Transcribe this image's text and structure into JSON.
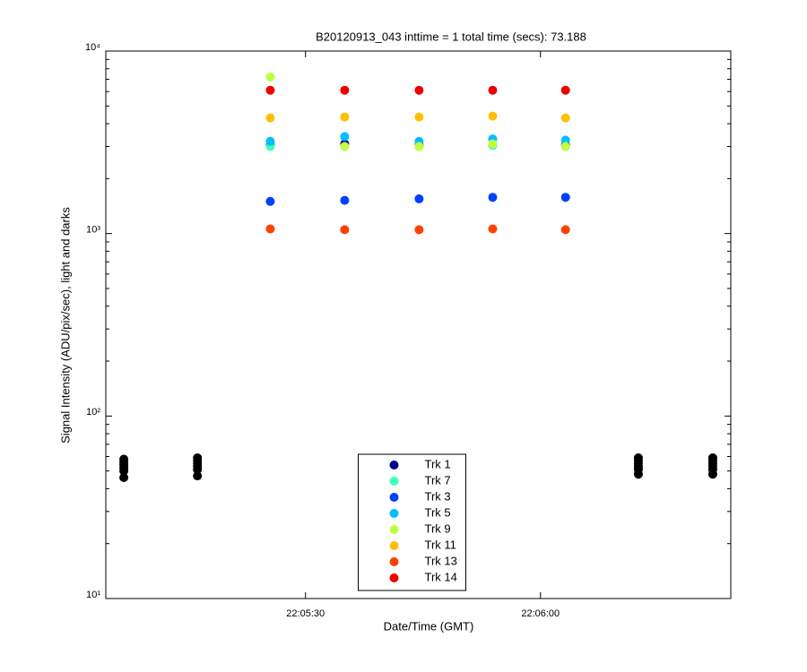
{
  "chart_data": {
    "type": "scatter",
    "title": "B20120913_043 inttime = 1 total time (secs): 73.188",
    "x_label": "Date/Time (GMT)",
    "y_label": "Signal Intensity (ADU/pix/sec), light and darks",
    "log_y": true,
    "xlim": [
      79504.5,
      79584.3
    ],
    "xticks": [
      {
        "value": 79530,
        "label": "22:05:30"
      },
      {
        "value": 79560,
        "label": "22:06:00"
      }
    ],
    "ylim": [
      10,
      10000
    ],
    "yticks": [
      {
        "value": 10,
        "label": "10¹"
      },
      {
        "value": 100,
        "label": "10²"
      },
      {
        "value": 1000,
        "label": "10³"
      },
      {
        "value": 10000,
        "label": "10⁴"
      }
    ],
    "legend_position": "south",
    "series": [
      {
        "color": "#000000",
        "x": [
          79506.8,
          79506.8,
          79506.8,
          79506.8,
          79506.8,
          79506.8,
          79516.2,
          79516.2,
          79516.2,
          79516.2,
          79516.2,
          79516.2,
          79572.5,
          79572.5,
          79572.5,
          79572.5,
          79572.5,
          79572.5,
          79582.0,
          79582.0,
          79582.0,
          79582.0,
          79582.0,
          79582.0
        ],
        "values": [
          46,
          50,
          52,
          54,
          56,
          58,
          47,
          51,
          53,
          55,
          57,
          59,
          48,
          51,
          53,
          55,
          57,
          59,
          48,
          51,
          53,
          55,
          57,
          59
        ]
      },
      {
        "name": "Trk 1",
        "color": "#00008f",
        "x": [
          79525.5,
          79535.0,
          79544.5,
          79553.9,
          79563.2
        ],
        "values": [
          3050,
          3100,
          3050,
          3050,
          3050
        ]
      },
      {
        "name": "Trk 7",
        "color": "#40ffbf",
        "x": [
          79525.5,
          79535.0,
          79544.5,
          79553.9,
          79563.2
        ],
        "values": [
          3000,
          3000,
          3000,
          3050,
          3000
        ]
      },
      {
        "name": "Trk 3",
        "color": "#0040ff",
        "x": [
          79525.5,
          79535.0,
          79544.5,
          79553.9,
          79563.2
        ],
        "values": [
          1500,
          1520,
          1550,
          1580,
          1580
        ]
      },
      {
        "name": "Trk 5",
        "color": "#00bfff",
        "x": [
          79525.5,
          79535.0,
          79544.5,
          79553.9,
          79563.2
        ],
        "values": [
          3200,
          3400,
          3200,
          3300,
          3250
        ]
      },
      {
        "name": "Trk 9",
        "color": "#bfff40",
        "x": [
          79525.5,
          79535.0,
          79544.5,
          79553.9,
          79563.2
        ],
        "values": [
          7200,
          3000,
          3000,
          3100,
          3000
        ]
      },
      {
        "name": "Trk 11",
        "color": "#ffbf00",
        "x": [
          79525.5,
          79535.0,
          79544.5,
          79553.9,
          79563.2
        ],
        "values": [
          4300,
          4350,
          4350,
          4400,
          4300
        ]
      },
      {
        "name": "Trk 13",
        "color": "#ff4000",
        "x": [
          79525.5,
          79535.0,
          79544.5,
          79553.9,
          79563.2
        ],
        "values": [
          1060,
          1050,
          1050,
          1060,
          1050
        ]
      },
      {
        "name": "Trk 14",
        "color": "#ef0000",
        "x": [
          79525.5,
          79535.0,
          79544.5,
          79553.9,
          79563.2
        ],
        "values": [
          6100,
          6100,
          6100,
          6100,
          6100
        ]
      }
    ]
  }
}
